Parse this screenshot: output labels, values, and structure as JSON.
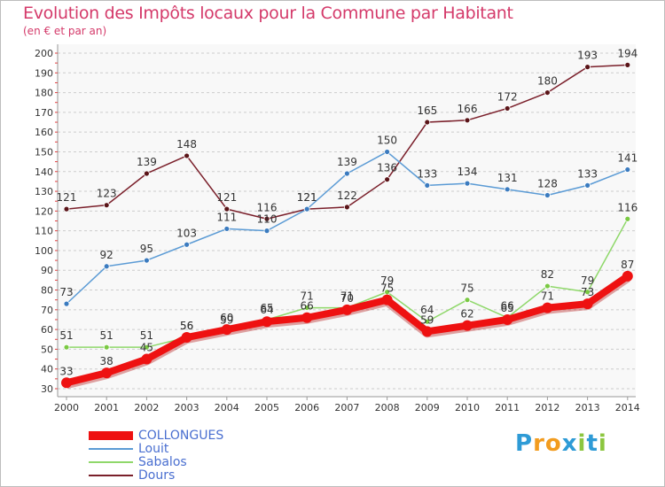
{
  "title": "Evolution des Impôts locaux pour la Commune par Habitant",
  "subtitle": "(en € et par an)",
  "logo": {
    "letters": [
      "P",
      "r",
      "o",
      "x",
      "i",
      "t",
      "i"
    ],
    "colors": [
      "#2e9bd6",
      "#f29c1f",
      "#f29c1f",
      "#2e9bd6",
      "#8cc63f",
      "#2e9bd6",
      "#8cc63f"
    ]
  },
  "chart_data": {
    "type": "line",
    "title": "Evolution des Impôts locaux pour la Commune par Habitant",
    "subtitle": "(en € et par an)",
    "categories": [
      "2000",
      "2001",
      "2002",
      "2003",
      "2004",
      "2005",
      "2006",
      "2007",
      "2008",
      "2009",
      "2010",
      "2011",
      "2012",
      "2013",
      "2014"
    ],
    "ylim": [
      30,
      200
    ],
    "yticks": [
      30,
      40,
      50,
      60,
      70,
      80,
      90,
      100,
      110,
      120,
      130,
      140,
      150,
      160,
      170,
      180,
      190,
      200
    ],
    "grid": "horizontal dashed",
    "legend_position": "bottom-left",
    "series": [
      {
        "name": "Dours",
        "color": "#7a1f2a",
        "marker": "#5a1418",
        "values": [
          121,
          123,
          139,
          148,
          121,
          116,
          121,
          122,
          136,
          165,
          166,
          172,
          180,
          193,
          194
        ],
        "labels": [
          "121",
          "123",
          "139",
          "148",
          "121",
          "116",
          "121",
          "122",
          "136",
          "165",
          "166",
          "172",
          "180",
          "193",
          "194"
        ]
      },
      {
        "name": "Louit",
        "color": "#5b9bd5",
        "marker": "#3b7bbf",
        "values": [
          73,
          92,
          95,
          103,
          111,
          110,
          121,
          139,
          150,
          133,
          134,
          131,
          128,
          133,
          141
        ],
        "labels": [
          "73",
          "92",
          "95",
          "103",
          "111",
          "110",
          "121",
          "139",
          "150",
          "133",
          "134",
          "131",
          "128",
          "133",
          "141"
        ]
      },
      {
        "name": "Sabalos",
        "color": "#8fd86a",
        "marker": "#7ac943",
        "values": [
          51,
          51,
          51,
          56,
          59,
          65,
          71,
          71,
          79,
          64,
          75,
          66,
          82,
          79,
          116
        ],
        "labels": [
          "51",
          "51",
          "51",
          "56",
          "59",
          "65",
          "71",
          "71",
          "79",
          "64",
          "75",
          "66",
          "82",
          "79",
          "116"
        ]
      },
      {
        "name": "COLLONGUES",
        "color": "#ee1111",
        "marker": "#ee1111",
        "values": [
          33,
          38,
          45,
          56,
          60,
          64,
          66,
          70,
          75,
          59,
          62,
          65,
          71,
          73,
          87
        ],
        "labels": [
          "33",
          "38",
          "45",
          "56",
          "60",
          "64",
          "66",
          "70",
          "75",
          "59",
          "62",
          "65",
          "71",
          "73",
          "87"
        ]
      }
    ],
    "legend_order": [
      "COLLONGUES",
      "Louit",
      "Sabalos",
      "Dours"
    ]
  }
}
